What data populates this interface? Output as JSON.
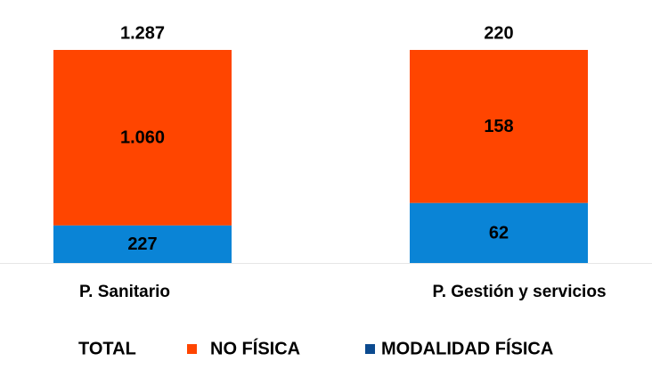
{
  "chart_data": {
    "type": "stacked_percent_bar",
    "categories": [
      "P. Sanitario",
      "P. Gestión y servicios"
    ],
    "series": [
      {
        "name": "MODALIDAD FÍSICA",
        "color": "#0a84d6",
        "legend_color": "#0b4a8f",
        "values": [
          227,
          62
        ]
      },
      {
        "name": "NO FÍSICA",
        "color": "#ff4500",
        "legend_color": "#ff4500",
        "values": [
          1060,
          158
        ],
        "value_labels": [
          "1.060",
          "158"
        ]
      }
    ],
    "total": {
      "name": "TOTAL",
      "values": [
        1287,
        220
      ],
      "value_labels": [
        "1.287",
        "220"
      ]
    },
    "legend": "bottom"
  }
}
